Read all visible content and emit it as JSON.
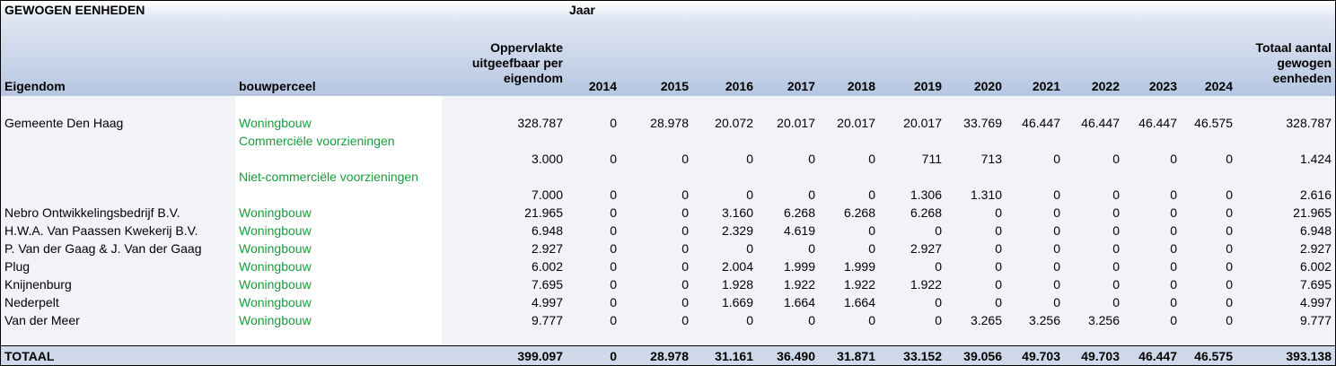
{
  "title": "GEWOGEN EENHEDEN",
  "jaar_label": "Jaar",
  "headers": {
    "eigendom": "Eigendom",
    "bouwperceel": "bouwperceel",
    "oppervlakte": [
      "Oppervlakte",
      "uitgeefbaar per",
      "eigendom"
    ],
    "years": [
      "2014",
      "2015",
      "2016",
      "2017",
      "2018",
      "2019",
      "2020",
      "2021",
      "2022",
      "2023",
      "2024"
    ],
    "totaal": [
      "Totaal aantal",
      "gewogen",
      "eenheden"
    ]
  },
  "rows": [
    {
      "eigendom": "Gemeente Den Haag",
      "bouwperceel": "Woningbouw",
      "values": [
        "328.787",
        "0",
        "28.978",
        "20.072",
        "20.017",
        "20.017",
        "20.017",
        "33.769",
        "46.447",
        "46.447",
        "46.447",
        "46.575",
        "328.787"
      ]
    },
    {
      "eigendom": "",
      "bouwperceel": "Commerciële voorzieningen",
      "values": [
        "3.000",
        "0",
        "0",
        "0",
        "0",
        "0",
        "711",
        "713",
        "0",
        "0",
        "0",
        "0",
        "1.424"
      ]
    },
    {
      "eigendom": "",
      "bouwperceel": "Niet-commerciële voorzieningen",
      "values": [
        "7.000",
        "0",
        "0",
        "0",
        "0",
        "0",
        "1.306",
        "1.310",
        "0",
        "0",
        "0",
        "0",
        "2.616"
      ]
    },
    {
      "eigendom": "Nebro Ontwikkelingsbedrijf B.V.",
      "bouwperceel": "Woningbouw",
      "values": [
        "21.965",
        "0",
        "0",
        "3.160",
        "6.268",
        "6.268",
        "6.268",
        "0",
        "0",
        "0",
        "0",
        "0",
        "21.965"
      ]
    },
    {
      "eigendom": "H.W.A. Van Paassen Kwekerij B.V.",
      "bouwperceel": "Woningbouw",
      "values": [
        "6.948",
        "0",
        "0",
        "2.329",
        "4.619",
        "0",
        "0",
        "0",
        "0",
        "0",
        "0",
        "0",
        "6.948"
      ]
    },
    {
      "eigendom": "P. Van der Gaag & J. Van der Gaag",
      "bouwperceel": "Woningbouw",
      "values": [
        "2.927",
        "0",
        "0",
        "0",
        "0",
        "0",
        "2.927",
        "0",
        "0",
        "0",
        "0",
        "0",
        "2.927"
      ]
    },
    {
      "eigendom": "Plug",
      "bouwperceel": "Woningbouw",
      "values": [
        "6.002",
        "0",
        "0",
        "2.004",
        "1.999",
        "1.999",
        "0",
        "0",
        "0",
        "0",
        "0",
        "0",
        "6.002"
      ]
    },
    {
      "eigendom": "Knijnenburg",
      "bouwperceel": "Woningbouw",
      "values": [
        "7.695",
        "0",
        "0",
        "1.928",
        "1.922",
        "1.922",
        "1.922",
        "0",
        "0",
        "0",
        "0",
        "0",
        "7.695"
      ]
    },
    {
      "eigendom": "Nederpelt",
      "bouwperceel": "Woningbouw",
      "values": [
        "4.997",
        "0",
        "0",
        "1.669",
        "1.664",
        "1.664",
        "0",
        "0",
        "0",
        "0",
        "0",
        "0",
        "4.997"
      ]
    },
    {
      "eigendom": "Van der Meer",
      "bouwperceel": "Woningbouw",
      "values": [
        "9.777",
        "0",
        "0",
        "0",
        "0",
        "0",
        "0",
        "3.265",
        "3.256",
        "3.256",
        "0",
        "0",
        "9.777"
      ]
    }
  ],
  "totaal": {
    "label": "TOTAAL",
    "values": [
      "399.097",
      "0",
      "28.978",
      "31.161",
      "36.490",
      "31.871",
      "33.152",
      "39.056",
      "49.703",
      "49.703",
      "46.447",
      "46.575",
      "393.138"
    ]
  }
}
